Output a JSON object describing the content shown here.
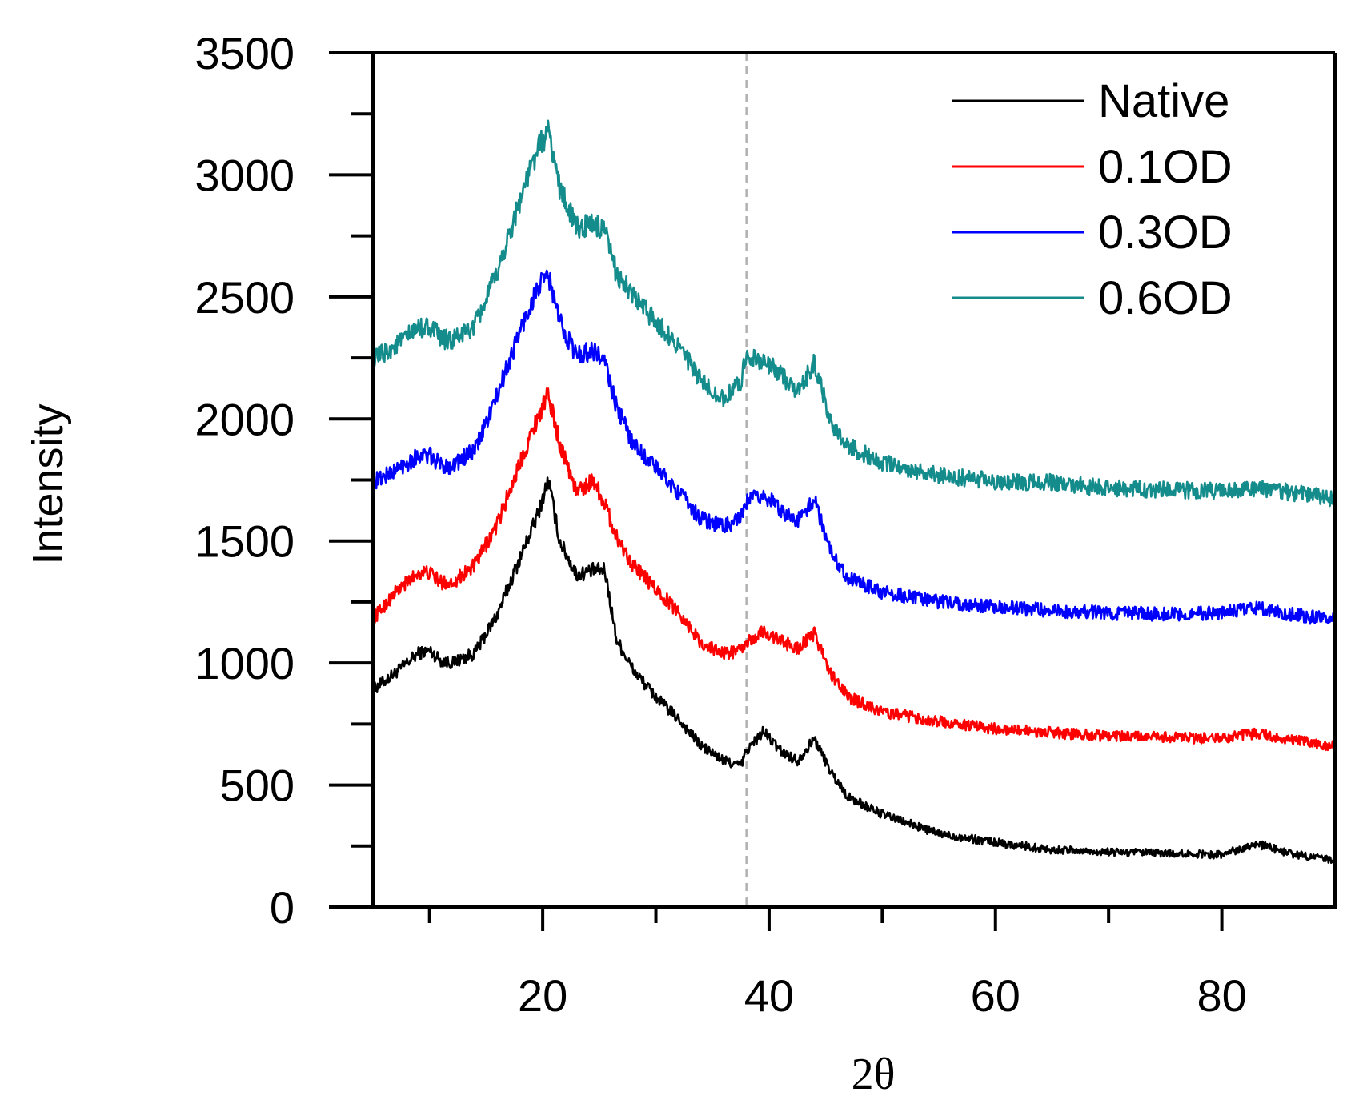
{
  "chart_data": {
    "type": "line",
    "title": "",
    "xlabel": "2θ",
    "ylabel": "Intensity",
    "xlim": [
      5,
      90
    ],
    "ylim": [
      0,
      3500
    ],
    "x_ticks": [
      20,
      40,
      60,
      80
    ],
    "x_minor_ticks": [
      10,
      30,
      50,
      70
    ],
    "y_ticks": [
      0,
      500,
      1000,
      1500,
      2000,
      2500,
      3000,
      3500
    ],
    "y_minor_ticks": [
      250,
      750,
      1250,
      1750,
      2250,
      2750,
      3250
    ],
    "reference_line_x": 38,
    "legend_position": "top-right",
    "x": [
      5,
      7,
      9,
      10,
      11,
      12,
      14,
      16,
      18,
      19.5,
      20.5,
      21.5,
      23,
      24.5,
      25.5,
      26.5,
      28,
      30,
      32,
      34,
      36,
      37.5,
      38,
      39.5,
      41,
      42.5,
      44,
      45.5,
      47,
      50,
      55,
      60,
      65,
      70,
      75,
      80,
      83,
      86,
      90
    ],
    "series": [
      {
        "name": "Native",
        "color": "#000000",
        "values": [
          890,
          960,
          1040,
          1050,
          1010,
          1000,
          1040,
          1200,
          1430,
          1600,
          1750,
          1500,
          1360,
          1380,
          1380,
          1100,
          970,
          860,
          770,
          660,
          600,
          580,
          640,
          720,
          640,
          600,
          690,
          550,
          450,
          380,
          300,
          265,
          235,
          225,
          220,
          215,
          260,
          220,
          190
        ]
      },
      {
        "name": "0.1OD",
        "color": "#ff0000",
        "values": [
          1180,
          1290,
          1370,
          1370,
          1330,
          1330,
          1400,
          1570,
          1820,
          2000,
          2100,
          1900,
          1700,
          1750,
          1650,
          1520,
          1400,
          1300,
          1210,
          1080,
          1040,
          1050,
          1080,
          1130,
          1090,
          1060,
          1120,
          950,
          860,
          800,
          760,
          730,
          715,
          700,
          695,
          690,
          710,
          685,
          660
        ]
      },
      {
        "name": "0.3OD",
        "color": "#0000ff",
        "values": [
          1740,
          1790,
          1850,
          1850,
          1810,
          1810,
          1870,
          2100,
          2360,
          2530,
          2590,
          2400,
          2260,
          2280,
          2230,
          2050,
          1900,
          1800,
          1700,
          1590,
          1560,
          1590,
          1660,
          1690,
          1630,
          1580,
          1670,
          1450,
          1350,
          1290,
          1250,
          1230,
          1215,
          1205,
          1200,
          1205,
          1225,
          1200,
          1175
        ]
      },
      {
        "name": "0.6OD",
        "color": "#148c8c",
        "values": [
          2240,
          2300,
          2370,
          2380,
          2330,
          2320,
          2380,
          2600,
          2900,
          3100,
          3180,
          2950,
          2780,
          2800,
          2760,
          2600,
          2500,
          2400,
          2300,
          2150,
          2080,
          2150,
          2270,
          2230,
          2190,
          2100,
          2230,
          1980,
          1890,
          1820,
          1770,
          1745,
          1740,
          1715,
          1710,
          1705,
          1715,
          1700,
          1670
        ]
      }
    ]
  }
}
